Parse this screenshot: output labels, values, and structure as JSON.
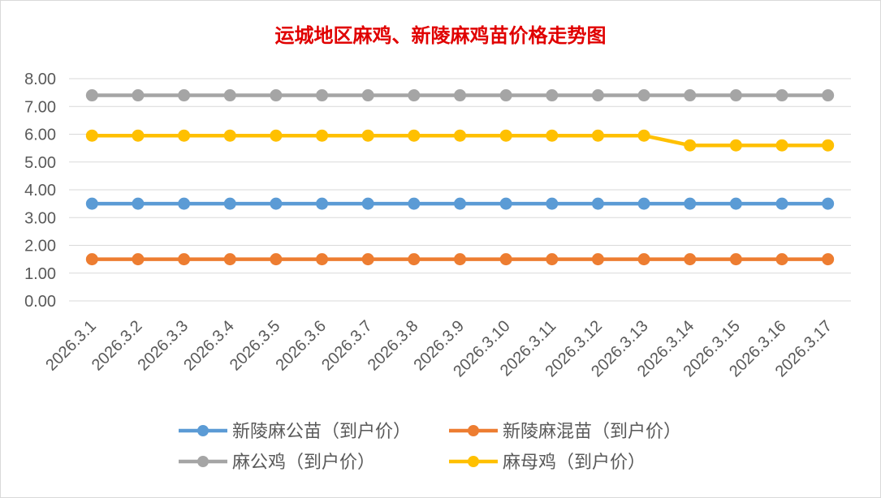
{
  "chart_data": {
    "type": "line",
    "title": "运城地区麻鸡、新陵麻鸡苗价格走势图",
    "xlabel": "",
    "ylabel": "",
    "categories": [
      "2026.3.1",
      "2026.3.2",
      "2026.3.3",
      "2026.3.4",
      "2026.3.5",
      "2026.3.6",
      "2026.3.7",
      "2026.3.8",
      "2026.3.9",
      "2026.3.10",
      "2026.3.11",
      "2026.3.12",
      "2026.3.13",
      "2026.3.14",
      "2026.3.15",
      "2026.3.16",
      "2026.3.17"
    ],
    "ylim": [
      0,
      8
    ],
    "yticks": [
      "0.00",
      "1.00",
      "2.00",
      "3.00",
      "4.00",
      "5.00",
      "6.00",
      "7.00",
      "8.00"
    ],
    "grid": true,
    "legend_position": "bottom",
    "series": [
      {
        "name": "新陵麻公苗（到户价）",
        "color": "#5b9bd5",
        "values": [
          3.5,
          3.5,
          3.5,
          3.5,
          3.5,
          3.5,
          3.5,
          3.5,
          3.5,
          3.5,
          3.5,
          3.5,
          3.5,
          3.5,
          3.5,
          3.5,
          3.5
        ]
      },
      {
        "name": "新陵麻混苗（到户价）",
        "color": "#ed7d31",
        "values": [
          1.5,
          1.5,
          1.5,
          1.5,
          1.5,
          1.5,
          1.5,
          1.5,
          1.5,
          1.5,
          1.5,
          1.5,
          1.5,
          1.5,
          1.5,
          1.5,
          1.5
        ]
      },
      {
        "name": "麻公鸡（到户价）",
        "color": "#a5a5a5",
        "values": [
          7.4,
          7.4,
          7.4,
          7.4,
          7.4,
          7.4,
          7.4,
          7.4,
          7.4,
          7.4,
          7.4,
          7.4,
          7.4,
          7.4,
          7.4,
          7.4,
          7.4
        ]
      },
      {
        "name": "麻母鸡（到户价）",
        "color": "#ffc000",
        "values": [
          5.95,
          5.95,
          5.95,
          5.95,
          5.95,
          5.95,
          5.95,
          5.95,
          5.95,
          5.95,
          5.95,
          5.95,
          5.95,
          5.6,
          5.6,
          5.6,
          5.6
        ]
      }
    ]
  }
}
